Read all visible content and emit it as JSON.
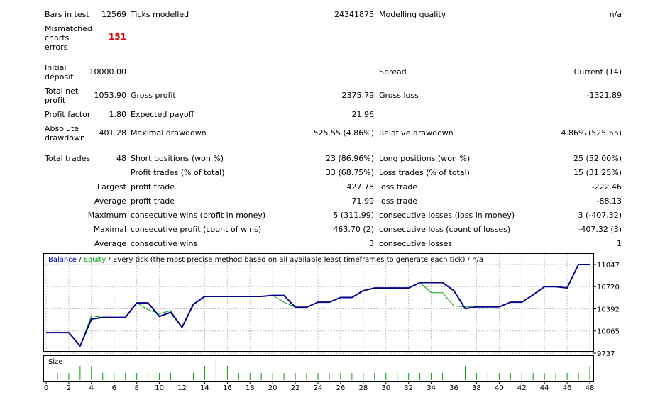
{
  "report": {
    "bars_in_test": {
      "label": "Bars in test",
      "value": "12569"
    },
    "ticks_modelled": {
      "label": "Ticks modelled",
      "value": "24341875"
    },
    "modelling_quality": {
      "label": "Modelling quality",
      "value": "n/a"
    },
    "mismatched": {
      "label": "Mismatched\ncharts\nerrors",
      "value": "151"
    },
    "initial_deposit": {
      "label": "Initial\ndeposit",
      "value": "10000.00"
    },
    "spread": {
      "label": "Spread",
      "value": "Current (14)"
    },
    "total_net_profit": {
      "label": "Total net\nprofit",
      "value": "1053.90"
    },
    "gross_profit": {
      "label": "Gross profit",
      "value": "2375.79"
    },
    "gross_loss": {
      "label": "Gross loss",
      "value": "-1321.89"
    },
    "profit_factor": {
      "label": "Profit factor",
      "value": "1.80"
    },
    "expected_payoff": {
      "label": "Expected payoff",
      "value": "21.96"
    },
    "absolute_drawdown": {
      "label": "Absolute\ndrawdown",
      "value": "401.28"
    },
    "maximal_drawdown": {
      "label": "Maximal drawdown",
      "value": "525.55 (4.86%)"
    },
    "relative_drawdown": {
      "label": "Relative drawdown",
      "value": "4.86% (525.55)"
    },
    "total_trades": {
      "label": "Total trades",
      "value": "48"
    },
    "short_positions": {
      "label": "Short positions (won %)",
      "value": "23 (86.96%)"
    },
    "long_positions": {
      "label": "Long positions (won %)",
      "value": "25 (52.00%)"
    },
    "profit_trades": {
      "label": "Profit trades (% of total)",
      "value": "33 (68.75%)"
    },
    "loss_trades": {
      "label": "Loss trades (% of total)",
      "value": "15 (31.25%)"
    },
    "largest": {
      "prefix": "Largest",
      "profit_label": "profit trade",
      "profit_value": "427.78",
      "loss_label": "loss trade",
      "loss_value": "-222.46"
    },
    "average": {
      "prefix": "Average",
      "profit_label": "profit trade",
      "profit_value": "71.99",
      "loss_label": "loss trade",
      "loss_value": "-88.13"
    },
    "maximum": {
      "prefix": "Maximum",
      "wins_label": "consecutive wins (profit in money)",
      "wins_value": "5 (311.99)",
      "losses_label": "consecutive losses (loss in money)",
      "losses_value": "3 (-407.32)"
    },
    "maximal": {
      "prefix": "Maximal",
      "profit_label": "consecutive profit (count of wins)",
      "profit_value": "463.70 (2)",
      "loss_label": "consecutive loss (count of losses)",
      "loss_value": "-407.32 (3)"
    },
    "average_consecutive": {
      "prefix": "Average",
      "wins_label": "consecutive wins",
      "wins_value": "3",
      "losses_label": "consecutive losses",
      "losses_value": "1"
    }
  },
  "chart_data": {
    "type": "line",
    "legend": {
      "balance": "Balance",
      "separator": " / ",
      "equity": "Equity",
      "description": " / Every tick (the most precise method based on all available least timeframes to generate each tick) / n/a"
    },
    "size_label": "Size",
    "colors": {
      "balance": "#00008b",
      "equity": "#00a000",
      "size": "#00a000",
      "grid": "#c0c0c0",
      "legend_balance": "#0000cc",
      "legend_equity": "#00a000"
    },
    "ylim": [
      9737,
      11047
    ],
    "yticks": [
      "11047",
      "10720",
      "10392",
      "10065",
      "9737"
    ],
    "xticks": [
      "0",
      "2",
      "4",
      "6",
      "8",
      "10",
      "12",
      "14",
      "16",
      "18",
      "20",
      "22",
      "24",
      "26",
      "28",
      "30",
      "32",
      "34",
      "36",
      "38",
      "40",
      "42",
      "44",
      "46",
      "48"
    ],
    "balance": {
      "x": [
        0,
        1,
        2,
        3,
        4,
        5,
        6,
        7,
        8,
        9,
        10,
        11,
        12,
        13,
        14,
        15,
        16,
        17,
        18,
        19,
        20,
        21,
        22,
        23,
        24,
        25,
        26,
        27,
        28,
        29,
        30,
        31,
        32,
        33,
        34,
        35,
        36,
        37,
        38,
        39,
        40,
        41,
        42,
        43,
        44,
        45,
        46,
        47,
        48
      ],
      "y": [
        10040,
        10040,
        10040,
        9843,
        10240,
        10265,
        10265,
        10265,
        10480,
        10480,
        10280,
        10340,
        10120,
        10460,
        10575,
        10575,
        10575,
        10575,
        10575,
        10575,
        10590,
        10590,
        10415,
        10415,
        10490,
        10490,
        10560,
        10560,
        10660,
        10700,
        10700,
        10700,
        10700,
        10780,
        10780,
        10780,
        10660,
        10395,
        10420,
        10420,
        10420,
        10490,
        10490,
        10600,
        10720,
        10720,
        10700,
        11047,
        11047
      ]
    },
    "equity": {
      "x": [
        0,
        1,
        2,
        3,
        4,
        5,
        6,
        7,
        8,
        9,
        10,
        11,
        12,
        13,
        14,
        15,
        16,
        17,
        18,
        19,
        20,
        21,
        22,
        23,
        24,
        25,
        26,
        27,
        28,
        29,
        30,
        31,
        32,
        33,
        34,
        35,
        36,
        37,
        38,
        39,
        40,
        41,
        42,
        43,
        44,
        45,
        46,
        47,
        48
      ],
      "y": [
        10040,
        10040,
        10040,
        9843,
        10290,
        10265,
        10265,
        10265,
        10480,
        10380,
        10320,
        10365,
        10120,
        10460,
        10575,
        10575,
        10575,
        10575,
        10575,
        10575,
        10590,
        10490,
        10415,
        10415,
        10490,
        10490,
        10560,
        10560,
        10660,
        10700,
        10700,
        10700,
        10700,
        10780,
        10630,
        10630,
        10435,
        10420,
        10420,
        10420,
        10420,
        10490,
        10490,
        10600,
        10720,
        10720,
        10700,
        11047,
        11047
      ]
    },
    "size": {
      "x": [
        1,
        2,
        3,
        4,
        5,
        6,
        7,
        8,
        9,
        10,
        11,
        12,
        13,
        14,
        15,
        16,
        17,
        18,
        19,
        20,
        21,
        22,
        23,
        24,
        25,
        26,
        27,
        28,
        29,
        30,
        31,
        32,
        33,
        34,
        35,
        36,
        37,
        38,
        39,
        40,
        41,
        42,
        43,
        44,
        45,
        46,
        47,
        48
      ],
      "y": [
        1,
        1,
        2,
        2,
        1,
        1,
        1,
        1,
        1,
        1,
        1,
        1,
        1,
        2,
        3,
        2,
        1,
        1,
        1,
        1,
        1,
        1,
        1,
        1,
        1,
        1,
        1,
        1,
        1,
        1,
        1,
        1,
        1,
        1,
        1,
        1,
        2,
        1,
        1,
        1,
        1,
        1,
        1,
        1,
        1,
        1,
        1,
        2
      ]
    }
  }
}
